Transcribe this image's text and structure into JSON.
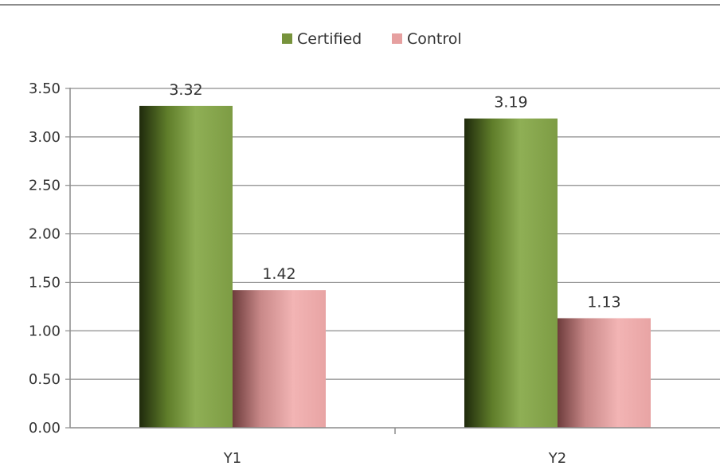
{
  "chart_data": {
    "type": "bar",
    "categories": [
      "Y1",
      "Y2"
    ],
    "series": [
      {
        "name": "Certified",
        "values": [
          3.32,
          3.19
        ],
        "color": "#77933C"
      },
      {
        "name": "Control",
        "values": [
          1.42,
          1.13
        ],
        "color": "#E6A0A0"
      }
    ],
    "data_labels": [
      [
        "3.32",
        "3.19"
      ],
      [
        "1.42",
        "1.13"
      ]
    ],
    "ylim": [
      0,
      3.5
    ],
    "yticks": [
      "0.00",
      "0.50",
      "1.00",
      "1.50",
      "2.00",
      "2.50",
      "3.00",
      "3.50"
    ],
    "grid": true,
    "legend_position": "top"
  }
}
